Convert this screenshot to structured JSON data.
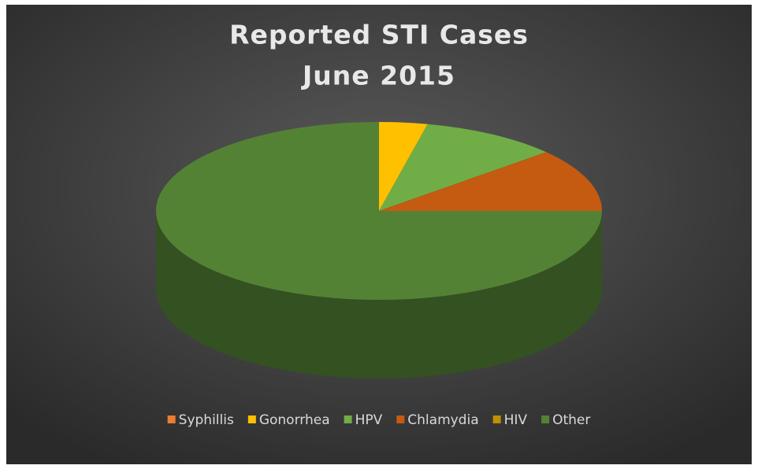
{
  "chart_data": {
    "type": "pie3d",
    "title_lines": [
      "Reported STI Cases",
      "June 2015"
    ],
    "categories": [
      "Syphillis",
      "Gonorrhea",
      "HPV",
      "Chlamydia",
      "HIV",
      "Other"
    ],
    "values": [
      0,
      3.5,
      10,
      11.5,
      0,
      75
    ],
    "colors": [
      "#ed7d31",
      "#ffc000",
      "#70ad47",
      "#c55a11",
      "#bf9000",
      "#548235"
    ],
    "legend": "bottom"
  }
}
